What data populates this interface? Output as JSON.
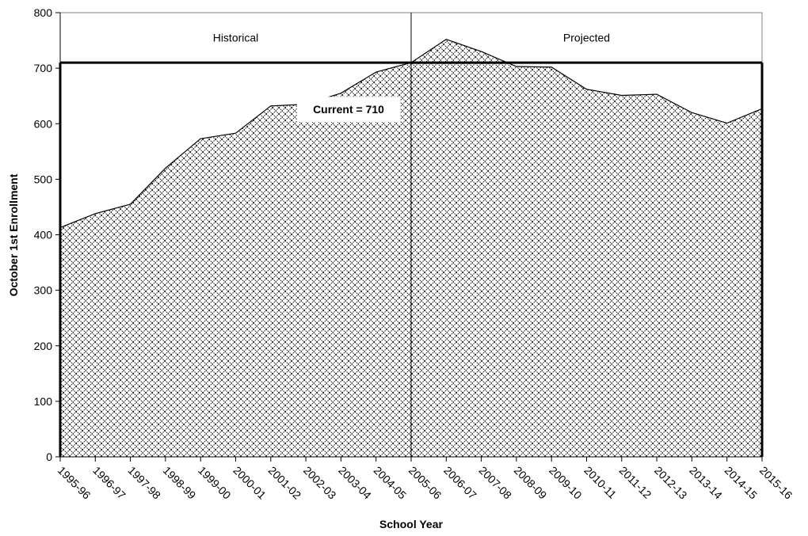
{
  "chart_data": {
    "type": "area",
    "xlabel": "School Year",
    "ylabel": "October 1st Enrollment",
    "ylim": [
      0,
      800
    ],
    "yticks": [
      0,
      100,
      200,
      300,
      400,
      500,
      600,
      700,
      800
    ],
    "grid": false,
    "categories": [
      "1995-96",
      "1996-97",
      "1997-98",
      "1998-99",
      "1999-00",
      "2000-01",
      "2001-02",
      "2002-03",
      "2003-04",
      "2004-05",
      "2005-06",
      "2006-07",
      "2007-08",
      "2008-09",
      "2009-10",
      "2010-11",
      "2011-12",
      "2012-13",
      "2013-14",
      "2014-15",
      "2015-16"
    ],
    "values": [
      413,
      438,
      455,
      520,
      573,
      583,
      632,
      635,
      655,
      693,
      710,
      752,
      730,
      703,
      702,
      662,
      651,
      653,
      620,
      601,
      627
    ],
    "regions": [
      {
        "label": "Historical",
        "from": "1995-96",
        "to": "2005-06"
      },
      {
        "label": "Projected",
        "from": "2005-06",
        "to": "2015-16"
      }
    ],
    "reference_line": {
      "value": 710,
      "label": "Current = 710"
    },
    "colors": {
      "fill_pattern": "#000000",
      "background": "#ffffff",
      "lines": "#000000"
    }
  }
}
